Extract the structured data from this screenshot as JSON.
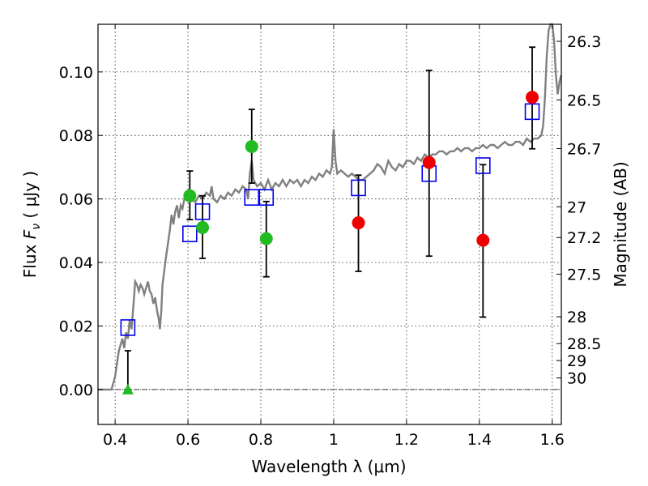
{
  "chart_data": {
    "type": "scatter",
    "xlabel": "Wavelength  λ (μm)",
    "ylabel": "Flux  F_ν ( μJy )",
    "ylabel_parts": {
      "prefix": "Flux  ",
      "symbol": "F",
      "subscript": "ν",
      "suffix": " ( μJy )"
    },
    "y2label": "Magnitude (AB)",
    "xlim": [
      0.353,
      1.625
    ],
    "ylim": [
      -0.011,
      0.115
    ],
    "xticks": [
      0.4,
      0.6,
      0.8,
      1.0,
      1.2,
      1.4,
      1.6
    ],
    "xtick_labels": [
      "0.4",
      "0.6",
      "0.8",
      "1",
      "1.2",
      "1.4",
      "1.6"
    ],
    "yticks": [
      0.0,
      0.02,
      0.04,
      0.06,
      0.08,
      0.1
    ],
    "ytick_labels": [
      "0.00",
      "0.02",
      "0.04",
      "0.06",
      "0.08",
      "0.10"
    ],
    "mag_ticks": [
      26.3,
      26.5,
      26.7,
      27,
      27.2,
      27.5,
      28,
      28.5,
      29,
      30
    ],
    "mag_tick_labels": [
      "26.3",
      "26.5",
      "26.7",
      "27",
      "27.2",
      "27.5",
      "28",
      "28.5",
      "29",
      "30"
    ],
    "grid": true,
    "colors": {
      "sed": "#808080",
      "green": "#22bb22",
      "red": "#ee0000",
      "model": "#0000ee",
      "errorbar": "#000000",
      "zeroline": "#000000"
    },
    "sed_curve": [
      [
        0.353,
        0.0
      ],
      [
        0.39,
        0.0
      ],
      [
        0.4,
        0.004
      ],
      [
        0.41,
        0.012
      ],
      [
        0.42,
        0.016
      ],
      [
        0.425,
        0.013
      ],
      [
        0.43,
        0.018
      ],
      [
        0.435,
        0.016
      ],
      [
        0.44,
        0.022
      ],
      [
        0.445,
        0.019
      ],
      [
        0.45,
        0.026
      ],
      [
        0.455,
        0.034
      ],
      [
        0.46,
        0.033
      ],
      [
        0.465,
        0.031
      ],
      [
        0.47,
        0.033
      ],
      [
        0.475,
        0.032
      ],
      [
        0.48,
        0.03
      ],
      [
        0.485,
        0.032
      ],
      [
        0.49,
        0.034
      ],
      [
        0.495,
        0.031
      ],
      [
        0.5,
        0.03
      ],
      [
        0.505,
        0.027
      ],
      [
        0.51,
        0.029
      ],
      [
        0.515,
        0.025
      ],
      [
        0.52,
        0.022
      ],
      [
        0.523,
        0.019
      ],
      [
        0.527,
        0.025
      ],
      [
        0.53,
        0.033
      ],
      [
        0.54,
        0.042
      ],
      [
        0.55,
        0.05
      ],
      [
        0.555,
        0.055
      ],
      [
        0.56,
        0.052
      ],
      [
        0.565,
        0.056
      ],
      [
        0.57,
        0.058
      ],
      [
        0.575,
        0.054
      ],
      [
        0.58,
        0.058
      ],
      [
        0.585,
        0.057
      ],
      [
        0.59,
        0.06
      ],
      [
        0.6,
        0.061
      ],
      [
        0.61,
        0.06
      ],
      [
        0.62,
        0.059
      ],
      [
        0.63,
        0.061
      ],
      [
        0.64,
        0.06
      ],
      [
        0.65,
        0.062
      ],
      [
        0.66,
        0.061
      ],
      [
        0.665,
        0.064
      ],
      [
        0.67,
        0.06
      ],
      [
        0.68,
        0.059
      ],
      [
        0.69,
        0.061
      ],
      [
        0.7,
        0.06
      ],
      [
        0.71,
        0.062
      ],
      [
        0.72,
        0.061
      ],
      [
        0.73,
        0.063
      ],
      [
        0.74,
        0.062
      ],
      [
        0.75,
        0.064
      ],
      [
        0.76,
        0.063
      ],
      [
        0.765,
        0.06
      ],
      [
        0.77,
        0.068
      ],
      [
        0.775,
        0.072
      ],
      [
        0.78,
        0.066
      ],
      [
        0.79,
        0.064
      ],
      [
        0.8,
        0.065
      ],
      [
        0.81,
        0.063
      ],
      [
        0.82,
        0.066
      ],
      [
        0.83,
        0.063
      ],
      [
        0.84,
        0.065
      ],
      [
        0.85,
        0.064
      ],
      [
        0.86,
        0.066
      ],
      [
        0.87,
        0.064
      ],
      [
        0.88,
        0.066
      ],
      [
        0.89,
        0.065
      ],
      [
        0.9,
        0.066
      ],
      [
        0.91,
        0.064
      ],
      [
        0.92,
        0.066
      ],
      [
        0.93,
        0.065
      ],
      [
        0.94,
        0.067
      ],
      [
        0.95,
        0.066
      ],
      [
        0.96,
        0.068
      ],
      [
        0.97,
        0.067
      ],
      [
        0.98,
        0.069
      ],
      [
        0.99,
        0.068
      ],
      [
        0.995,
        0.07
      ],
      [
        1.0,
        0.082
      ],
      [
        1.005,
        0.072
      ],
      [
        1.01,
        0.068
      ],
      [
        1.02,
        0.069
      ],
      [
        1.03,
        0.068
      ],
      [
        1.04,
        0.067
      ],
      [
        1.05,
        0.068
      ],
      [
        1.06,
        0.067
      ],
      [
        1.07,
        0.066
      ],
      [
        1.08,
        0.066
      ],
      [
        1.09,
        0.067
      ],
      [
        1.1,
        0.068
      ],
      [
        1.11,
        0.069
      ],
      [
        1.12,
        0.071
      ],
      [
        1.13,
        0.07
      ],
      [
        1.14,
        0.068
      ],
      [
        1.15,
        0.072
      ],
      [
        1.16,
        0.07
      ],
      [
        1.17,
        0.069
      ],
      [
        1.18,
        0.071
      ],
      [
        1.19,
        0.07
      ],
      [
        1.2,
        0.072
      ],
      [
        1.21,
        0.072
      ],
      [
        1.22,
        0.071
      ],
      [
        1.23,
        0.073
      ],
      [
        1.24,
        0.072
      ],
      [
        1.25,
        0.074
      ],
      [
        1.26,
        0.073
      ],
      [
        1.27,
        0.074
      ],
      [
        1.28,
        0.074
      ],
      [
        1.29,
        0.075
      ],
      [
        1.3,
        0.075
      ],
      [
        1.31,
        0.074
      ],
      [
        1.32,
        0.075
      ],
      [
        1.33,
        0.075
      ],
      [
        1.34,
        0.076
      ],
      [
        1.35,
        0.075
      ],
      [
        1.36,
        0.076
      ],
      [
        1.37,
        0.076
      ],
      [
        1.38,
        0.075
      ],
      [
        1.39,
        0.076
      ],
      [
        1.4,
        0.076
      ],
      [
        1.41,
        0.077
      ],
      [
        1.42,
        0.076
      ],
      [
        1.43,
        0.077
      ],
      [
        1.44,
        0.077
      ],
      [
        1.45,
        0.076
      ],
      [
        1.46,
        0.077
      ],
      [
        1.47,
        0.078
      ],
      [
        1.48,
        0.077
      ],
      [
        1.49,
        0.077
      ],
      [
        1.5,
        0.078
      ],
      [
        1.51,
        0.078
      ],
      [
        1.52,
        0.077
      ],
      [
        1.53,
        0.079
      ],
      [
        1.54,
        0.078
      ],
      [
        1.55,
        0.079
      ],
      [
        1.56,
        0.079
      ],
      [
        1.57,
        0.08
      ],
      [
        1.575,
        0.083
      ],
      [
        1.58,
        0.092
      ],
      [
        1.585,
        0.105
      ],
      [
        1.59,
        0.113
      ],
      [
        1.595,
        0.118
      ],
      [
        1.6,
        0.118
      ],
      [
        1.605,
        0.11
      ],
      [
        1.61,
        0.099
      ],
      [
        1.615,
        0.093
      ],
      [
        1.62,
        0.097
      ],
      [
        1.625,
        0.099
      ]
    ],
    "observed_green": [
      {
        "x": 0.605,
        "y": 0.061,
        "yerr_low": 0.0535,
        "yerr_high": 0.0688
      },
      {
        "x": 0.64,
        "y": 0.051,
        "yerr_low": 0.0413,
        "yerr_high": 0.061
      },
      {
        "x": 0.775,
        "y": 0.0765,
        "yerr_low": 0.065,
        "yerr_high": 0.0882
      },
      {
        "x": 0.815,
        "y": 0.0475,
        "yerr_low": 0.0355,
        "yerr_high": 0.0592
      }
    ],
    "observed_red": [
      {
        "x": 1.068,
        "y": 0.0525,
        "yerr_low": 0.0372,
        "yerr_high": 0.0675
      },
      {
        "x": 1.262,
        "y": 0.0715,
        "yerr_low": 0.042,
        "yerr_high": 0.1005
      },
      {
        "x": 1.41,
        "y": 0.047,
        "yerr_low": 0.0228,
        "yerr_high": 0.0708
      },
      {
        "x": 1.545,
        "y": 0.092,
        "yerr_low": 0.0758,
        "yerr_high": 0.1078
      }
    ],
    "upper_limit_green": [
      {
        "x": 0.435,
        "y": 0.0,
        "yerr_low": 0.0,
        "yerr_high": 0.0122
      }
    ],
    "model_points": [
      {
        "x": 0.435,
        "y": 0.0195
      },
      {
        "x": 0.605,
        "y": 0.049
      },
      {
        "x": 0.64,
        "y": 0.056
      },
      {
        "x": 0.775,
        "y": 0.0605
      },
      {
        "x": 0.815,
        "y": 0.0605
      },
      {
        "x": 1.068,
        "y": 0.0635
      },
      {
        "x": 1.262,
        "y": 0.068
      },
      {
        "x": 1.41,
        "y": 0.0705
      },
      {
        "x": 1.545,
        "y": 0.0875
      }
    ]
  }
}
